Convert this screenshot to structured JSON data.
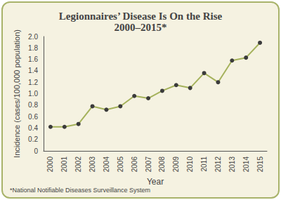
{
  "chart_data": {
    "type": "line",
    "title": "Legionnaires’ Disease Is On the Rise",
    "subtitle": "2000–2015*",
    "x_label": "Year",
    "y_label": "Incidence (cases/100,000 population)",
    "annotations": [
      "*National Notifiable Diseases Surveillance System"
    ],
    "categories": [
      "2000",
      "2001",
      "2002",
      "2003",
      "2004",
      "2005",
      "2006",
      "2007",
      "2008",
      "2009",
      "2010",
      "2011",
      "2012",
      "2013",
      "2014",
      "2015"
    ],
    "values": [
      0.42,
      0.42,
      0.47,
      0.78,
      0.72,
      0.78,
      0.96,
      0.92,
      1.05,
      1.15,
      1.1,
      1.36,
      1.2,
      1.58,
      1.63,
      1.89
    ],
    "color": "#a5b25c",
    "marker": "circle",
    "ylim": [
      0,
      2
    ],
    "yticks": [
      0,
      0.2,
      0.4,
      0.6,
      0.8,
      {
        "value": 1,
        "label": "1.0"
      },
      1.2,
      1.4,
      1.6,
      1.8,
      {
        "value": 2,
        "label": "2.0"
      }
    ],
    "grid": false
  }
}
